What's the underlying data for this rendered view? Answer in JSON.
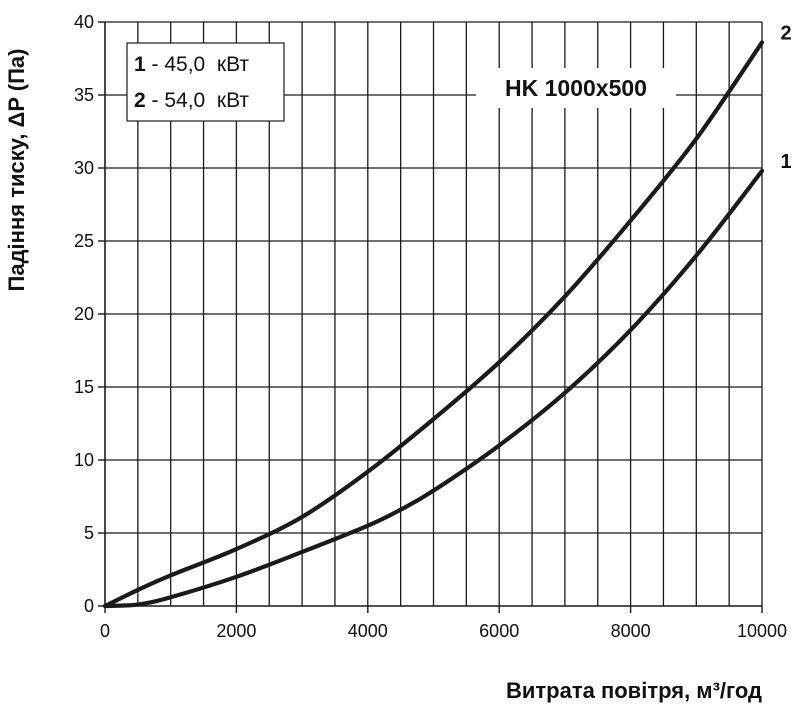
{
  "chart_data": {
    "type": "line",
    "title": "HK 1000x500",
    "xlabel": "Витрата повітря, м³/год",
    "ylabel": "Падіння тиску, ΔP (Па)",
    "xlim": [
      0,
      10000
    ],
    "ylim": [
      0,
      40
    ],
    "x_ticks": [
      "0",
      "2000",
      "4000",
      "6000",
      "8000",
      "10000"
    ],
    "y_ticks": [
      "0",
      "5",
      "10",
      "15",
      "20",
      "25",
      "30",
      "35",
      "40"
    ],
    "grid": true,
    "legend": {
      "placement": "top-left",
      "items": [
        {
          "num": "1",
          "text": " - 45,0  кВт"
        },
        {
          "num": "2",
          "text": " - 54,0  кВт"
        }
      ]
    },
    "series": [
      {
        "name": "1",
        "x": [
          0,
          500,
          1000,
          2000,
          3000,
          4000,
          4500,
          5000,
          6000,
          7000,
          8000,
          9000,
          10000
        ],
        "y": [
          0,
          0.1,
          0.6,
          2.0,
          3.7,
          5.5,
          6.6,
          7.9,
          11.0,
          14.6,
          18.9,
          24.0,
          29.8
        ]
      },
      {
        "name": "2",
        "x": [
          0,
          500,
          1000,
          2000,
          3000,
          4000,
          5000,
          6000,
          7000,
          8000,
          9000,
          10000
        ],
        "y": [
          0,
          1.1,
          2.1,
          3.9,
          6.1,
          9.2,
          12.8,
          16.7,
          21.2,
          26.4,
          32.0,
          38.6
        ]
      }
    ]
  },
  "colors": {
    "line": "#1a1a1a",
    "grid": "#1a1a1a",
    "text": "#111111"
  }
}
